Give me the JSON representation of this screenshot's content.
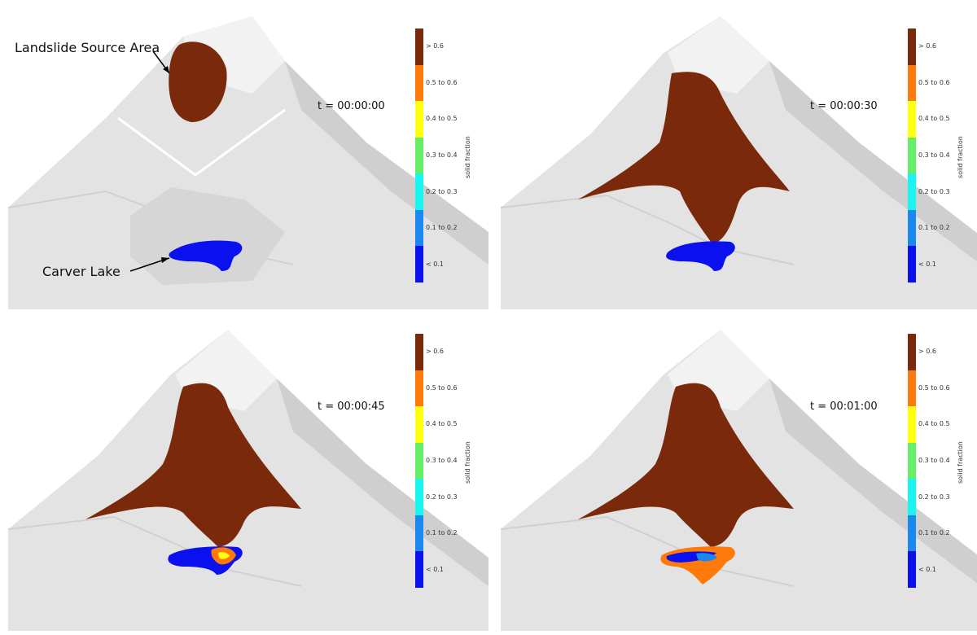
{
  "panels": [
    {
      "time": "t = 00:00:00"
    },
    {
      "time": "t = 00:00:30"
    },
    {
      "time": "t = 00:00:45"
    },
    {
      "time": "t = 00:01:00"
    }
  ],
  "annotations": {
    "landslide_source": "Landslide Source Area",
    "carver_lake": "Carver Lake"
  },
  "colorbar": {
    "title": "solid fraction",
    "bins": [
      {
        "label": "> 0.6",
        "color": "#7a2a0a"
      },
      {
        "label": "0.5 to 0.6",
        "color": "#ff7a0a"
      },
      {
        "label": "0.4 to 0.5",
        "color": "#ffff10"
      },
      {
        "label": "0.3 to 0.4",
        "color": "#66ee66"
      },
      {
        "label": "0.2 to 0.3",
        "color": "#19f5f0"
      },
      {
        "label": "0.1 to 0.2",
        "color": "#1a88ee"
      },
      {
        "label": "< 0.1",
        "color": "#0a10ee"
      }
    ]
  },
  "colors": {
    "terrain": "#e2e2e2",
    "terrain_dark": "#c9c9c9",
    "terrain_light": "#f3f3f3",
    "debris": "#7a2a0a",
    "lake": "#0a10ee"
  }
}
